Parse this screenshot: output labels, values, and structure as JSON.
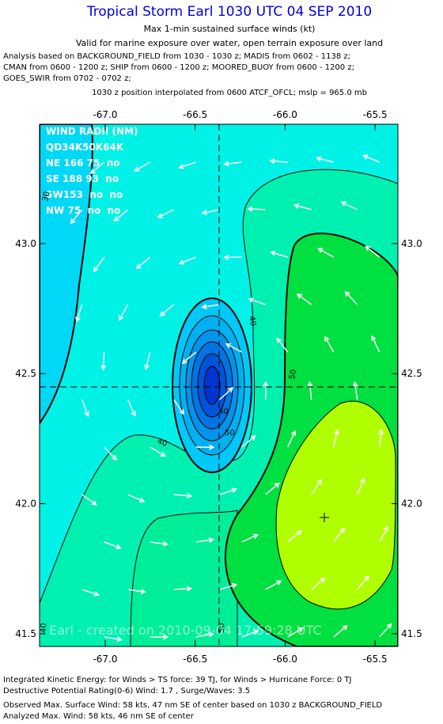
{
  "header": {
    "title": "Tropical Storm Earl 1030 UTC 04 SEP 2010",
    "subtitle": "Max 1-min sustained surface winds (kt)",
    "valid": "Valid for marine exposure over water, open terrain exposure over land",
    "analysis": [
      "Analysis based on BACKGROUND_FIELD from 1030 - 1030 z; MADIS from 0602 - 1138 z;",
      "CMAN from 0600 - 1200 z; SHIP from 0600 - 1200 z; MOORED_BUOY from 0600 - 1200 z;",
      "GOES_SWIR from 0702 - 0702 z;"
    ],
    "position": "1030 z position interpolated from 0600 ATCF_OFCL; mslp = 965.0 mb"
  },
  "map": {
    "xlim": [
      -67.365,
      -65.373
    ],
    "ylim": [
      41.451,
      43.459
    ],
    "xticks": [
      {
        "value": -67,
        "label": "-67.0"
      },
      {
        "value": -66.5,
        "label": "-66.5"
      },
      {
        "value": -66,
        "label": "-66.0"
      },
      {
        "value": -65.5,
        "label": "-65.5"
      }
    ],
    "yticks": [
      {
        "value": 43,
        "label": "43.0"
      },
      {
        "value": 42.5,
        "label": "42.5"
      },
      {
        "value": 42,
        "label": "42.0"
      },
      {
        "value": 41.5,
        "label": "41.5"
      }
    ],
    "wind_radii": {
      "title": "WIND RADII (NM)",
      "header": "QD34K50K64K",
      "rows": [
        "NE 166 75  no",
        "SE 188 93  no",
        "SW153  no  no",
        "NW 75  no  no"
      ]
    },
    "contour_labels": [
      "30",
      "40",
      "40",
      "50",
      "40",
      "50",
      "40",
      "50"
    ],
    "watermark": "Earl - created on 2010-09-04 17:59:28 UTC"
  },
  "footer": [
    "Integrated Kinetic Energy:  for Winds > TS force: 39 TJ,  for Winds > Hurricane Force: 0 TJ",
    "Destructive Potential Rating(0-6)   Wind: 1.7 , Surge/Waves: 3.5",
    "Observed Max. Surface Wind: 58 kts, 47 nm SE of center based on 1030 z BACKGROUND_FIELD",
    "Analyzed Max. Wind: 58 kts, 46 nm SE of center"
  ]
}
